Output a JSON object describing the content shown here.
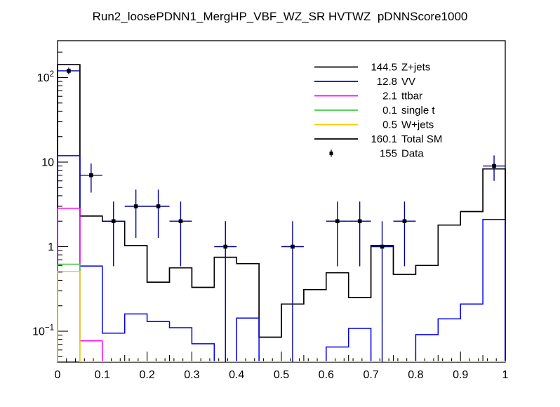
{
  "title": "Run2_loosePDNN1_MergHP_VBF_WZ_SR HVTWZ  pDNNScore1000",
  "chart_data": {
    "type": "bar",
    "subtype": "stacked-step-histogram-log-y",
    "title": "Run2_loosePDNN1_MergHP_VBF_WZ_SR HVTWZ  pDNNScore1000",
    "xlabel": "",
    "ylabel": "",
    "x_range": [
      0,
      1
    ],
    "n_bins": 20,
    "bin_width": 0.05,
    "y_scale": "log",
    "y_range_approx": [
      0.043,
      273
    ],
    "grid": false,
    "note": "series values are the drawn cumulative stack-outline level per bin; 0 means below the y-axis minimum (line drawn on bottom frame)",
    "x_ticks": [
      {
        "v": 0.0,
        "label": "0"
      },
      {
        "v": 0.1,
        "label": "0.1"
      },
      {
        "v": 0.2,
        "label": "0.2"
      },
      {
        "v": 0.3,
        "label": "0.3"
      },
      {
        "v": 0.4,
        "label": "0.4"
      },
      {
        "v": 0.5,
        "label": "0.5"
      },
      {
        "v": 0.6,
        "label": "0.6"
      },
      {
        "v": 0.7,
        "label": "0.7"
      },
      {
        "v": 0.8,
        "label": "0.8"
      },
      {
        "v": 0.9,
        "label": "0.9"
      },
      {
        "v": 1.0,
        "label": "1"
      }
    ],
    "y_ticks": [
      {
        "v": 100,
        "base": "10",
        "sup": "2"
      },
      {
        "v": 10,
        "base": "10",
        "sup": ""
      },
      {
        "v": 1,
        "base": "1",
        "sup": ""
      },
      {
        "v": 0.1,
        "base": "10",
        "sup": "−1"
      }
    ],
    "series": [
      {
        "name": "W+jets",
        "color": "#ffcc00",
        "values": [
          0.51,
          0,
          0,
          0,
          0,
          0,
          0,
          0,
          0,
          0,
          0,
          0,
          0,
          0,
          0,
          0,
          0,
          0,
          0,
          0
        ]
      },
      {
        "name": "single t",
        "color": "#42c842",
        "values": [
          0.62,
          0,
          0,
          0,
          0,
          0,
          0,
          0,
          0,
          0,
          0,
          0,
          0,
          0,
          0,
          0,
          0,
          0,
          0,
          0
        ]
      },
      {
        "name": "ttbar",
        "color": "#ff00ff",
        "values": [
          2.85,
          0.077,
          0,
          0,
          0,
          0,
          0,
          0,
          0,
          0,
          0,
          0,
          0,
          0,
          0,
          0,
          0,
          0,
          0,
          0
        ]
      },
      {
        "name": "VV",
        "color": "#0000ee",
        "values": [
          11.9,
          0.59,
          0.095,
          0.16,
          0.13,
          0.11,
          0.071,
          0,
          0.143,
          0,
          0,
          0,
          0.065,
          0.108,
          0,
          0,
          0.091,
          0.14,
          0.21,
          2.1
        ]
      },
      {
        "name": "Z+jets",
        "color": "#000000",
        "values": [
          142,
          2.3,
          2.0,
          1.03,
          0.38,
          0.56,
          0.33,
          0.75,
          0.63,
          0.085,
          0.21,
          0.31,
          0.49,
          0.25,
          1.03,
          0.47,
          0.6,
          1.8,
          2.6,
          8.3
        ]
      },
      {
        "name": "Total SM",
        "color": "#000000",
        "values": [
          142,
          2.3,
          2.0,
          1.03,
          0.38,
          0.56,
          0.33,
          0.75,
          0.63,
          0.085,
          0.21,
          0.31,
          0.49,
          0.25,
          1.03,
          0.47,
          0.6,
          1.8,
          2.6,
          8.3
        ]
      }
    ],
    "data_points": [
      {
        "x": 0.025,
        "n": 120
      },
      {
        "x": 0.075,
        "n": 7
      },
      {
        "x": 0.125,
        "n": 2
      },
      {
        "x": 0.175,
        "n": 3
      },
      {
        "x": 0.225,
        "n": 3
      },
      {
        "x": 0.275,
        "n": 2
      },
      {
        "x": 0.375,
        "n": 1
      },
      {
        "x": 0.525,
        "n": 1
      },
      {
        "x": 0.625,
        "n": 2
      },
      {
        "x": 0.675,
        "n": 2
      },
      {
        "x": 0.725,
        "n": 1
      },
      {
        "x": 0.775,
        "n": 2
      },
      {
        "x": 0.975,
        "n": 9
      }
    ],
    "data_marker_color": "#000000",
    "data_error_color": "#000099",
    "legend": {
      "position": "top-right-inside",
      "border": false,
      "entries": [
        {
          "value": "144.5",
          "label": "Z+jets",
          "color": "#000000",
          "style": "line"
        },
        {
          "value": "12.8",
          "label": "VV",
          "color": "#0000ee",
          "style": "line"
        },
        {
          "value": "2.1",
          "label": "ttbar",
          "color": "#ff00ff",
          "style": "line"
        },
        {
          "value": "0.1",
          "label": "single t",
          "color": "#42c842",
          "style": "line"
        },
        {
          "value": "0.5",
          "label": "W+jets",
          "color": "#ffcc00",
          "style": "line"
        },
        {
          "value": "160.1",
          "label": "Total SM",
          "color": "#000000",
          "style": "line"
        },
        {
          "value": "155",
          "label": "Data",
          "color": "#000000",
          "style": "marker"
        }
      ]
    }
  }
}
